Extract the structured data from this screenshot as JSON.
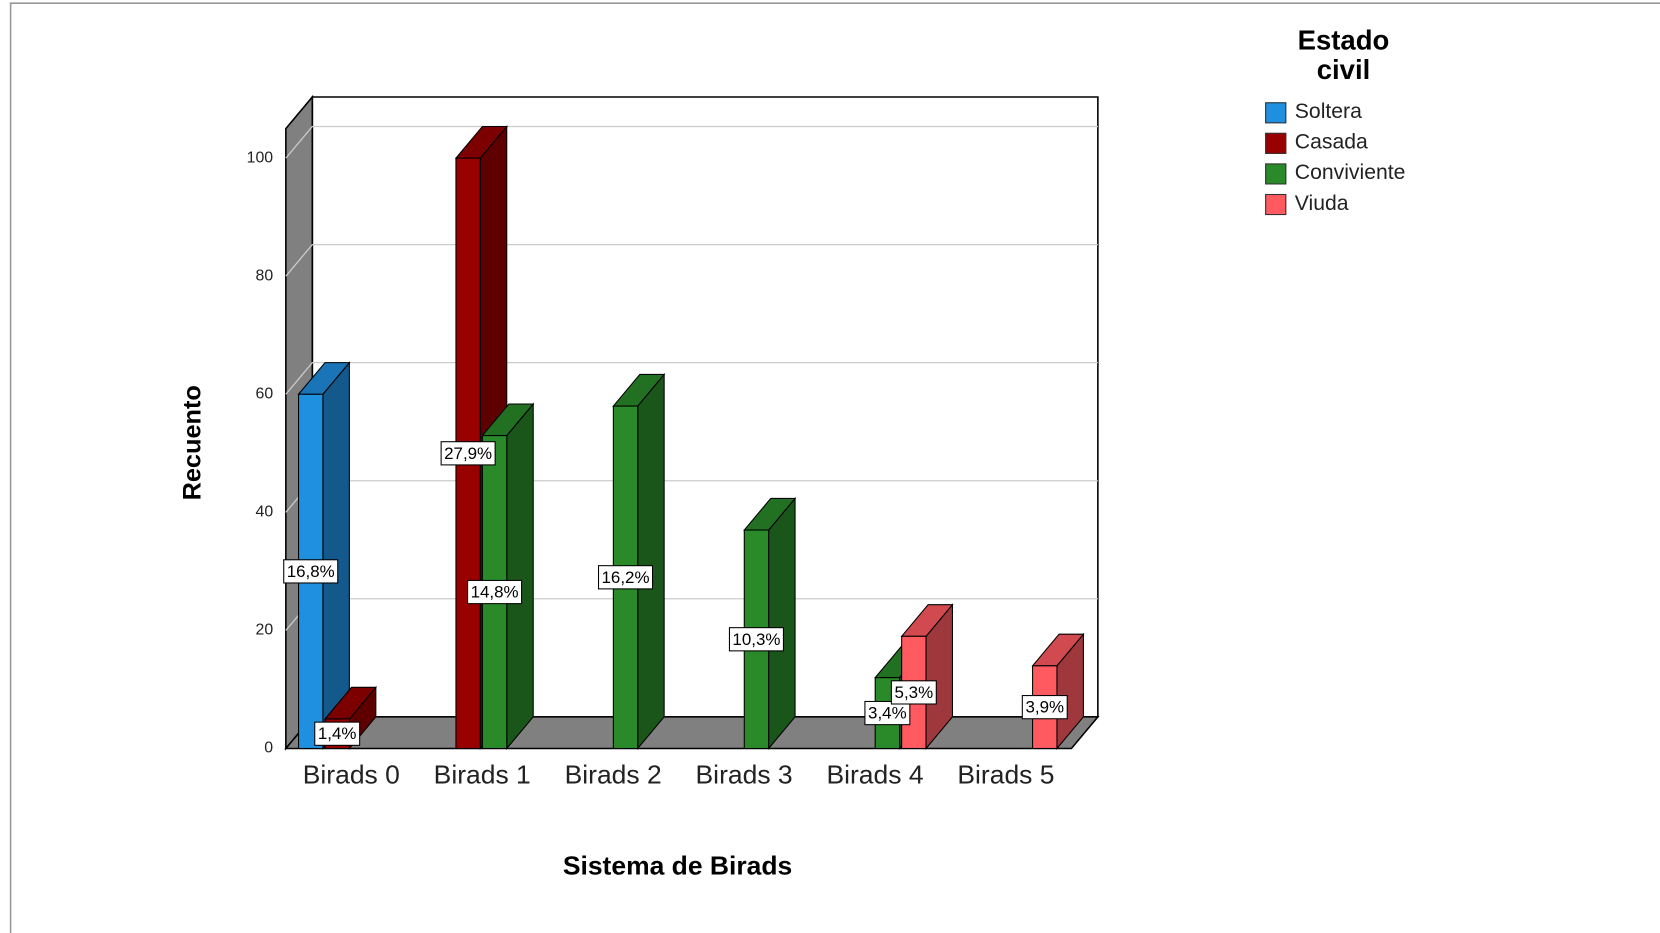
{
  "chart_data": {
    "type": "bar3d",
    "x_label": "Sistema de Birads",
    "y_label": "Recuento",
    "legend_title": "Estado civil",
    "legend_position": "right",
    "grid": true,
    "categories": [
      "Birads 0",
      "Birads 1",
      "Birads 2",
      "Birads 3",
      "Birads 4",
      "Birads 5"
    ],
    "ylim": [
      0,
      105
    ],
    "yticks": [
      0,
      20,
      40,
      60,
      80,
      100
    ],
    "series": [
      {
        "name": "Soltera",
        "color": "#1f8fe0",
        "values": [
          60,
          null,
          null,
          null,
          null,
          null
        ],
        "percent_labels": [
          "16,8%",
          null,
          null,
          null,
          null,
          null
        ]
      },
      {
        "name": "Casada",
        "color": "#990000",
        "values": [
          5,
          100,
          null,
          null,
          null,
          null
        ],
        "percent_labels": [
          "1,4%",
          "27,9%",
          null,
          null,
          null,
          null
        ]
      },
      {
        "name": "Conviviente",
        "color": "#2a8a2a",
        "values": [
          null,
          53,
          58,
          37,
          12,
          null
        ],
        "percent_labels": [
          null,
          "14,8%",
          "16,2%",
          "10,3%",
          "3,4%",
          null
        ]
      },
      {
        "name": "Viuda",
        "color": "#ff5a60",
        "values": [
          null,
          null,
          null,
          null,
          19,
          14
        ],
        "percent_labels": [
          null,
          null,
          null,
          null,
          "5,3%",
          "3,9%"
        ]
      }
    ]
  }
}
